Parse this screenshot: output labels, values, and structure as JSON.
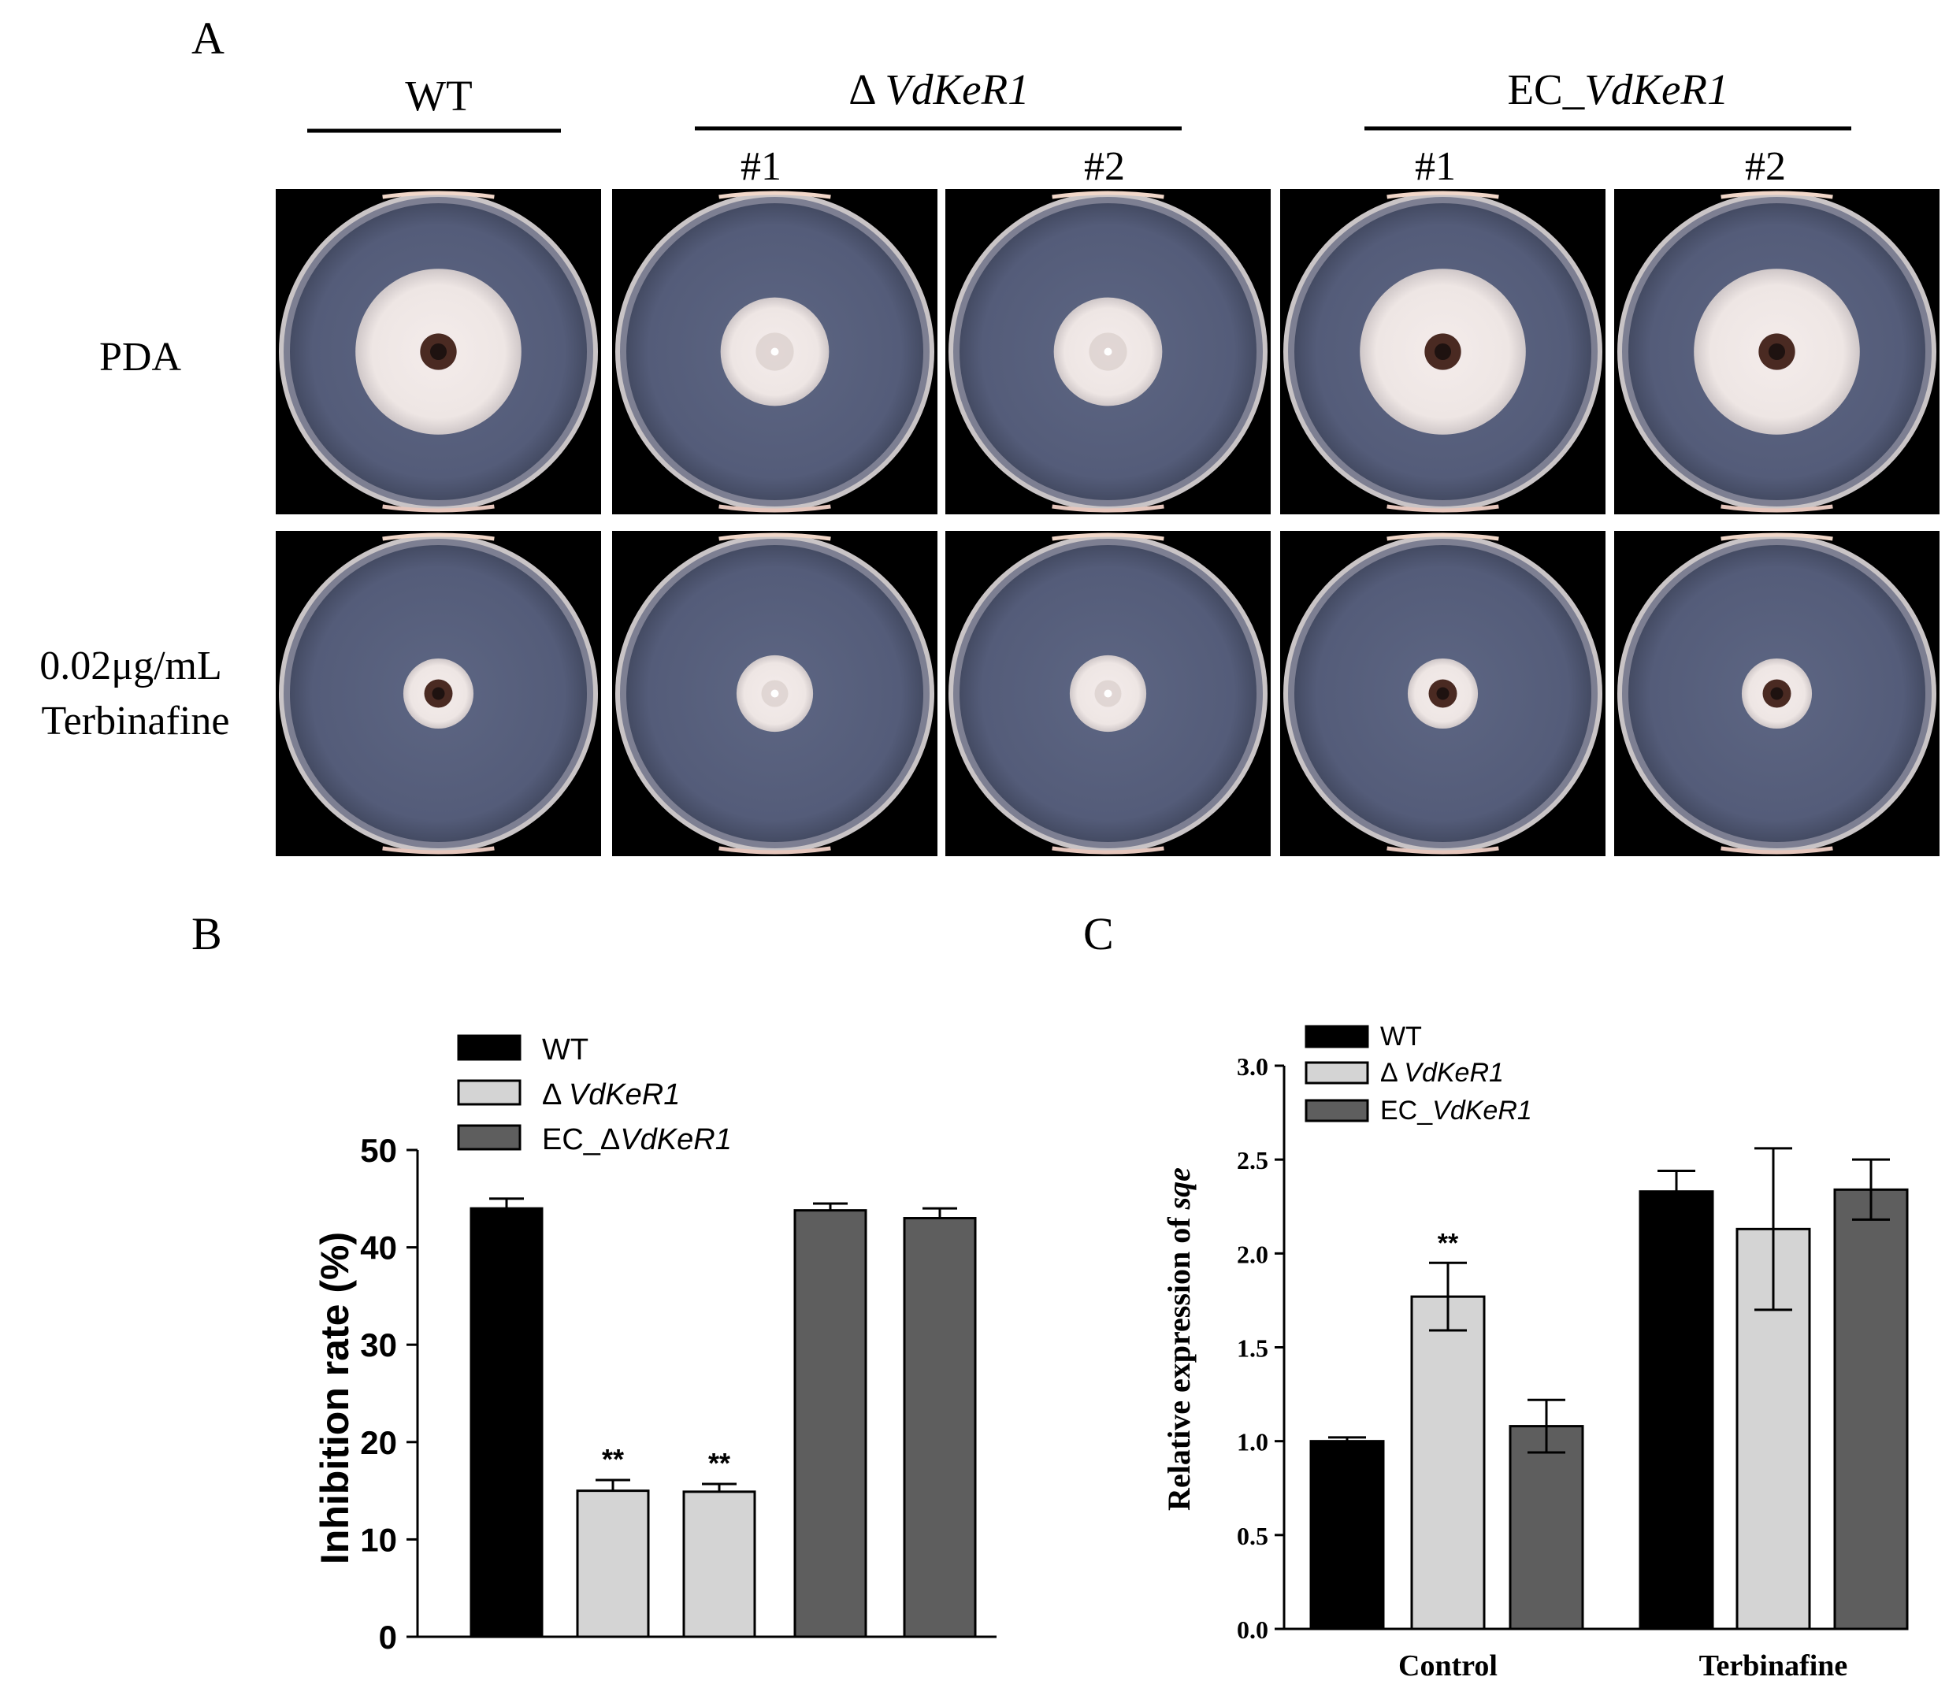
{
  "panel_a": {
    "label": "A",
    "groups": [
      {
        "name": "WT",
        "italic": ""
      },
      {
        "name": "Δ ",
        "italic": "VdKeR1"
      },
      {
        "name": "EC_",
        "italic": "VdKeR1"
      }
    ],
    "subs": [
      "#1",
      "#2",
      "#1",
      "#2"
    ],
    "rows": [
      {
        "label_lines": [
          "PDA"
        ]
      },
      {
        "label_lines": [
          "0.02μg/mL",
          "Terbinafine"
        ]
      }
    ],
    "colony": {
      "pda_radius_rel": [
        0.52,
        0.34,
        0.34,
        0.52,
        0.52
      ],
      "terb_radius_rel": [
        0.22,
        0.24,
        0.24,
        0.22,
        0.22
      ],
      "pda_center_pigmented": [
        true,
        false,
        false,
        true,
        true
      ],
      "terb_center_pigmented": [
        true,
        false,
        false,
        true,
        true
      ]
    },
    "colors": {
      "background": "#000000",
      "agar": "#545c79",
      "rim": "#c9c4c6",
      "colony": "#eee6e4",
      "center": "#4a2a22"
    }
  },
  "chart_data": [
    {
      "panel": "B",
      "type": "bar",
      "title": "",
      "xlabel": "",
      "ylabel": "Inhibition rate (%)",
      "ylim": [
        0,
        50
      ],
      "yticks": [
        0,
        10,
        20,
        30,
        40,
        50
      ],
      "legend": {
        "placement": "top",
        "entries": [
          {
            "prefix": "WT",
            "italic": "",
            "color": "#000000"
          },
          {
            "prefix": "Δ ",
            "italic": "VdKeR1",
            "color": "#d4d4d4"
          },
          {
            "prefix": "EC_Δ",
            "italic": "VdKeR1",
            "color": "#5e5e5e"
          }
        ]
      },
      "bars": [
        {
          "value": 44.0,
          "error": 1.0,
          "color": "#000000",
          "annotation": ""
        },
        {
          "value": 15.0,
          "error": 1.1,
          "color": "#d4d4d4",
          "annotation": "**"
        },
        {
          "value": 14.9,
          "error": 0.8,
          "color": "#d4d4d4",
          "annotation": "**"
        },
        {
          "value": 43.8,
          "error": 0.7,
          "color": "#5e5e5e",
          "annotation": ""
        },
        {
          "value": 43.0,
          "error": 1.0,
          "color": "#5e5e5e",
          "annotation": ""
        }
      ]
    },
    {
      "panel": "C",
      "type": "bar",
      "title": "",
      "xlabel": "",
      "ylabel_prefix": "Relative expression of ",
      "ylabel_italic": "sqe",
      "ylim": [
        0,
        3.0
      ],
      "yticks": [
        "0.0",
        "0.5",
        "1.0",
        "1.5",
        "2.0",
        "2.5",
        "3.0"
      ],
      "categories": [
        "Control",
        "Terbinafine"
      ],
      "legend": {
        "placement": "top-left",
        "entries": [
          {
            "prefix": "WT",
            "italic": "",
            "color": "#000000"
          },
          {
            "prefix": "Δ ",
            "italic": "VdKeR1",
            "color": "#d4d4d4"
          },
          {
            "prefix": "EC_",
            "italic": "VdKeR1",
            "color": "#5e5e5e"
          }
        ]
      },
      "series": [
        {
          "values": [
            1.0,
            2.33
          ],
          "errors": [
            0.02,
            0.11
          ],
          "color": "#000000",
          "annotations": [
            "",
            ""
          ]
        },
        {
          "values": [
            1.77,
            2.13
          ],
          "errors": [
            0.18,
            0.43
          ],
          "color": "#d4d4d4",
          "annotations": [
            "**",
            ""
          ]
        },
        {
          "values": [
            1.08,
            2.34
          ],
          "errors": [
            0.14,
            0.16
          ],
          "color": "#5e5e5e",
          "annotations": [
            "",
            ""
          ]
        }
      ]
    }
  ],
  "panel_labels": {
    "b": "B",
    "c": "C"
  }
}
